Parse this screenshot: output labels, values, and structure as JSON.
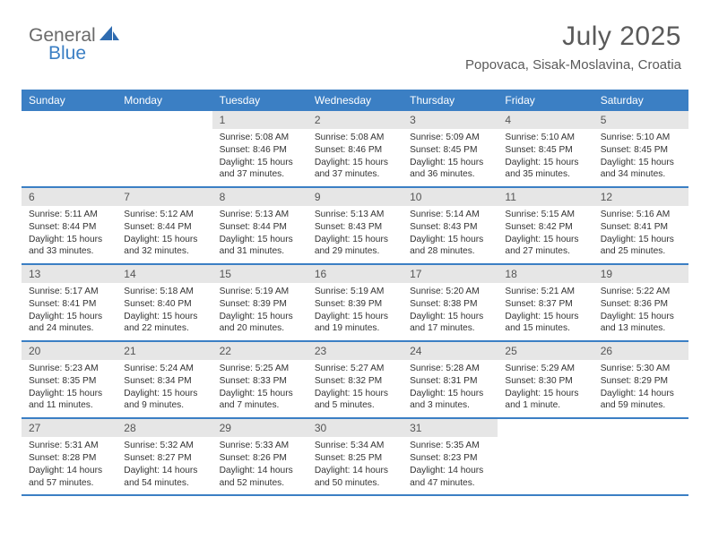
{
  "brand": {
    "part1": "General",
    "part2": "Blue"
  },
  "title": "July 2025",
  "location": "Popovaca, Sisak-Moslavina, Croatia",
  "weekdays": [
    "Sunday",
    "Monday",
    "Tuesday",
    "Wednesday",
    "Thursday",
    "Friday",
    "Saturday"
  ],
  "colors": {
    "accent": "#3b7fc4",
    "header_text": "#ffffff",
    "daynum_bg": "#e6e6e6",
    "text": "#333333",
    "title_text": "#5a5a5a",
    "logo_gray": "#6a6a6a"
  },
  "rows": [
    [
      {
        "blank": true
      },
      {
        "blank": true
      },
      {
        "n": "1",
        "sunrise": "Sunrise: 5:08 AM",
        "sunset": "Sunset: 8:46 PM",
        "daylight": "Daylight: 15 hours and 37 minutes."
      },
      {
        "n": "2",
        "sunrise": "Sunrise: 5:08 AM",
        "sunset": "Sunset: 8:46 PM",
        "daylight": "Daylight: 15 hours and 37 minutes."
      },
      {
        "n": "3",
        "sunrise": "Sunrise: 5:09 AM",
        "sunset": "Sunset: 8:45 PM",
        "daylight": "Daylight: 15 hours and 36 minutes."
      },
      {
        "n": "4",
        "sunrise": "Sunrise: 5:10 AM",
        "sunset": "Sunset: 8:45 PM",
        "daylight": "Daylight: 15 hours and 35 minutes."
      },
      {
        "n": "5",
        "sunrise": "Sunrise: 5:10 AM",
        "sunset": "Sunset: 8:45 PM",
        "daylight": "Daylight: 15 hours and 34 minutes."
      }
    ],
    [
      {
        "n": "6",
        "sunrise": "Sunrise: 5:11 AM",
        "sunset": "Sunset: 8:44 PM",
        "daylight": "Daylight: 15 hours and 33 minutes."
      },
      {
        "n": "7",
        "sunrise": "Sunrise: 5:12 AM",
        "sunset": "Sunset: 8:44 PM",
        "daylight": "Daylight: 15 hours and 32 minutes."
      },
      {
        "n": "8",
        "sunrise": "Sunrise: 5:13 AM",
        "sunset": "Sunset: 8:44 PM",
        "daylight": "Daylight: 15 hours and 31 minutes."
      },
      {
        "n": "9",
        "sunrise": "Sunrise: 5:13 AM",
        "sunset": "Sunset: 8:43 PM",
        "daylight": "Daylight: 15 hours and 29 minutes."
      },
      {
        "n": "10",
        "sunrise": "Sunrise: 5:14 AM",
        "sunset": "Sunset: 8:43 PM",
        "daylight": "Daylight: 15 hours and 28 minutes."
      },
      {
        "n": "11",
        "sunrise": "Sunrise: 5:15 AM",
        "sunset": "Sunset: 8:42 PM",
        "daylight": "Daylight: 15 hours and 27 minutes."
      },
      {
        "n": "12",
        "sunrise": "Sunrise: 5:16 AM",
        "sunset": "Sunset: 8:41 PM",
        "daylight": "Daylight: 15 hours and 25 minutes."
      }
    ],
    [
      {
        "n": "13",
        "sunrise": "Sunrise: 5:17 AM",
        "sunset": "Sunset: 8:41 PM",
        "daylight": "Daylight: 15 hours and 24 minutes."
      },
      {
        "n": "14",
        "sunrise": "Sunrise: 5:18 AM",
        "sunset": "Sunset: 8:40 PM",
        "daylight": "Daylight: 15 hours and 22 minutes."
      },
      {
        "n": "15",
        "sunrise": "Sunrise: 5:19 AM",
        "sunset": "Sunset: 8:39 PM",
        "daylight": "Daylight: 15 hours and 20 minutes."
      },
      {
        "n": "16",
        "sunrise": "Sunrise: 5:19 AM",
        "sunset": "Sunset: 8:39 PM",
        "daylight": "Daylight: 15 hours and 19 minutes."
      },
      {
        "n": "17",
        "sunrise": "Sunrise: 5:20 AM",
        "sunset": "Sunset: 8:38 PM",
        "daylight": "Daylight: 15 hours and 17 minutes."
      },
      {
        "n": "18",
        "sunrise": "Sunrise: 5:21 AM",
        "sunset": "Sunset: 8:37 PM",
        "daylight": "Daylight: 15 hours and 15 minutes."
      },
      {
        "n": "19",
        "sunrise": "Sunrise: 5:22 AM",
        "sunset": "Sunset: 8:36 PM",
        "daylight": "Daylight: 15 hours and 13 minutes."
      }
    ],
    [
      {
        "n": "20",
        "sunrise": "Sunrise: 5:23 AM",
        "sunset": "Sunset: 8:35 PM",
        "daylight": "Daylight: 15 hours and 11 minutes."
      },
      {
        "n": "21",
        "sunrise": "Sunrise: 5:24 AM",
        "sunset": "Sunset: 8:34 PM",
        "daylight": "Daylight: 15 hours and 9 minutes."
      },
      {
        "n": "22",
        "sunrise": "Sunrise: 5:25 AM",
        "sunset": "Sunset: 8:33 PM",
        "daylight": "Daylight: 15 hours and 7 minutes."
      },
      {
        "n": "23",
        "sunrise": "Sunrise: 5:27 AM",
        "sunset": "Sunset: 8:32 PM",
        "daylight": "Daylight: 15 hours and 5 minutes."
      },
      {
        "n": "24",
        "sunrise": "Sunrise: 5:28 AM",
        "sunset": "Sunset: 8:31 PM",
        "daylight": "Daylight: 15 hours and 3 minutes."
      },
      {
        "n": "25",
        "sunrise": "Sunrise: 5:29 AM",
        "sunset": "Sunset: 8:30 PM",
        "daylight": "Daylight: 15 hours and 1 minute."
      },
      {
        "n": "26",
        "sunrise": "Sunrise: 5:30 AM",
        "sunset": "Sunset: 8:29 PM",
        "daylight": "Daylight: 14 hours and 59 minutes."
      }
    ],
    [
      {
        "n": "27",
        "sunrise": "Sunrise: 5:31 AM",
        "sunset": "Sunset: 8:28 PM",
        "daylight": "Daylight: 14 hours and 57 minutes."
      },
      {
        "n": "28",
        "sunrise": "Sunrise: 5:32 AM",
        "sunset": "Sunset: 8:27 PM",
        "daylight": "Daylight: 14 hours and 54 minutes."
      },
      {
        "n": "29",
        "sunrise": "Sunrise: 5:33 AM",
        "sunset": "Sunset: 8:26 PM",
        "daylight": "Daylight: 14 hours and 52 minutes."
      },
      {
        "n": "30",
        "sunrise": "Sunrise: 5:34 AM",
        "sunset": "Sunset: 8:25 PM",
        "daylight": "Daylight: 14 hours and 50 minutes."
      },
      {
        "n": "31",
        "sunrise": "Sunrise: 5:35 AM",
        "sunset": "Sunset: 8:23 PM",
        "daylight": "Daylight: 14 hours and 47 minutes."
      },
      {
        "blank": true
      },
      {
        "blank": true
      }
    ]
  ]
}
